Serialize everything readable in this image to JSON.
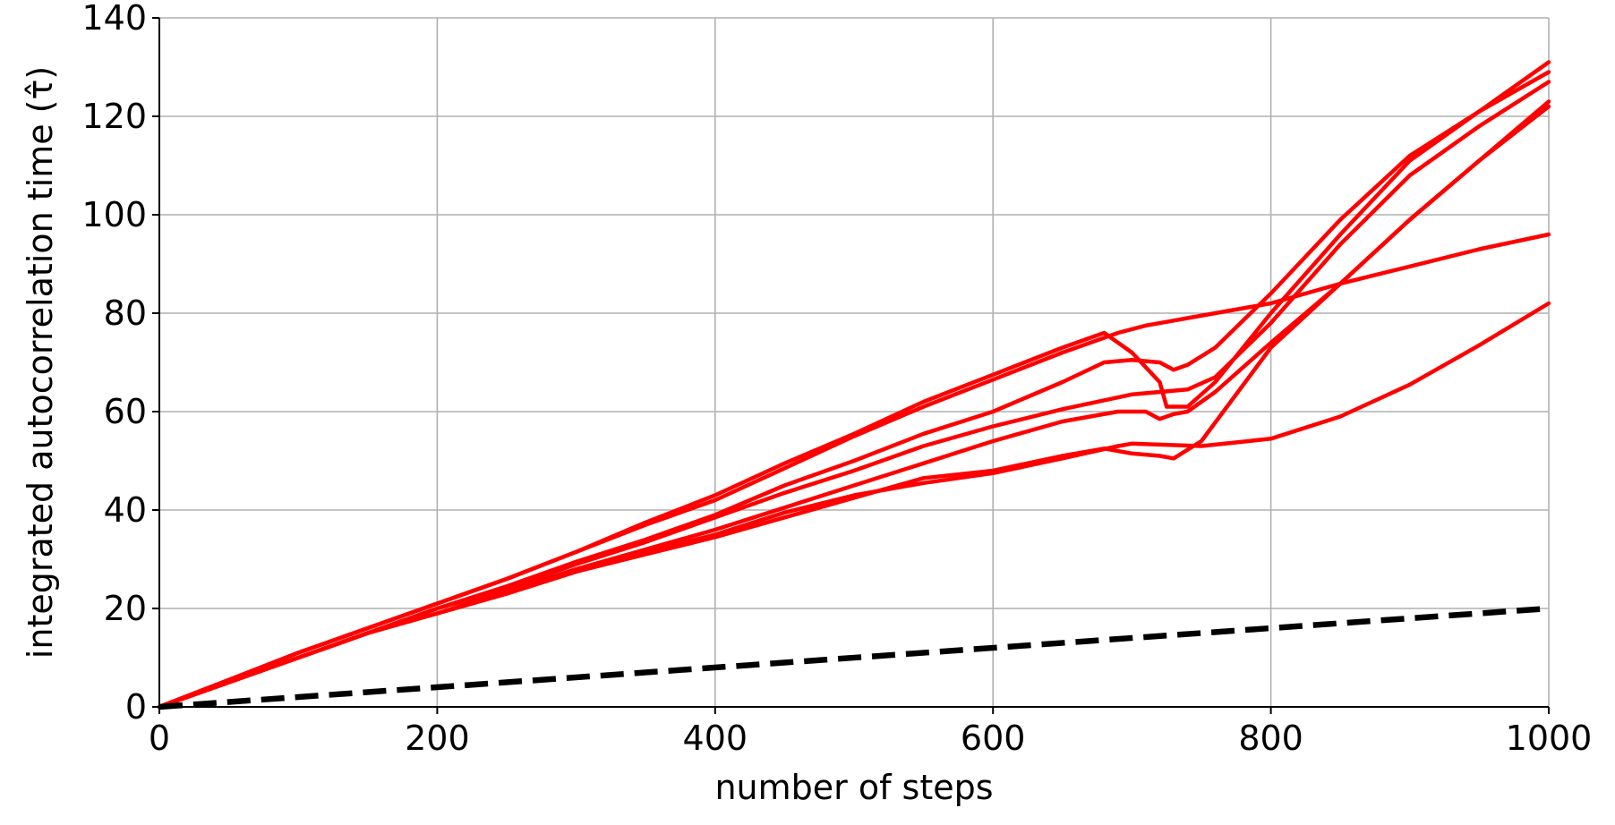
{
  "chart_data": {
    "type": "line",
    "title": "",
    "xlabel": "number of steps",
    "ylabel": "integrated autocorrelation time (τ̂)",
    "xlim": [
      0,
      1000
    ],
    "ylim": [
      0,
      140
    ],
    "xticks": [
      0,
      200,
      400,
      600,
      800,
      1000
    ],
    "yticks": [
      0,
      20,
      40,
      60,
      80,
      100,
      120,
      140
    ],
    "grid": true,
    "series_color": "#ff0000",
    "reference_color": "#000000",
    "series": [
      {
        "x": [
          0,
          50,
          100,
          150,
          200,
          250,
          300,
          350,
          400,
          450,
          500,
          550,
          600,
          650,
          680,
          700,
          720,
          725,
          740,
          760,
          800,
          850,
          900,
          950,
          1000
        ],
        "values": [
          0,
          5.5,
          11,
          16,
          21,
          26,
          31.5,
          37.5,
          43,
          49.5,
          55.5,
          62,
          67.5,
          73,
          76,
          72,
          66,
          61,
          61,
          66,
          80,
          96,
          111,
          121,
          131
        ]
      },
      {
        "x": [
          0,
          50,
          100,
          150,
          200,
          250,
          300,
          350,
          400,
          450,
          500,
          550,
          600,
          650,
          690,
          710,
          730,
          740,
          760,
          800,
          850,
          900,
          950,
          1000
        ],
        "values": [
          0,
          5.5,
          11,
          16,
          21,
          26,
          31.5,
          37,
          42,
          48.5,
          55,
          61,
          66.5,
          72,
          76,
          77.5,
          78.5,
          79,
          80,
          82,
          86,
          89.5,
          93,
          96
        ]
      },
      {
        "x": [
          0,
          50,
          100,
          150,
          200,
          250,
          300,
          350,
          400,
          450,
          500,
          550,
          600,
          650,
          680,
          700,
          720,
          730,
          740,
          760,
          800,
          850,
          900,
          950,
          1000
        ],
        "values": [
          0,
          5,
          10,
          15,
          20,
          24.5,
          29.5,
          34,
          39,
          45,
          50,
          55.5,
          60,
          66,
          70,
          70.5,
          70,
          68.5,
          69.5,
          73,
          84,
          99,
          112,
          121,
          129
        ]
      },
      {
        "x": [
          0,
          50,
          100,
          150,
          200,
          250,
          300,
          350,
          400,
          450,
          500,
          550,
          600,
          650,
          700,
          740,
          760,
          800,
          850,
          900,
          950,
          1000
        ],
        "values": [
          0,
          5,
          10,
          15,
          20,
          24,
          29,
          33.5,
          38.5,
          43.5,
          48,
          53,
          57,
          60.5,
          63.5,
          64.5,
          67,
          78,
          94,
          108,
          118,
          127
        ]
      },
      {
        "x": [
          0,
          50,
          100,
          150,
          200,
          250,
          300,
          350,
          400,
          450,
          500,
          550,
          600,
          650,
          690,
          710,
          720,
          730,
          740,
          760,
          800,
          850,
          900,
          950,
          1000
        ],
        "values": [
          0,
          5,
          10,
          15,
          19,
          23.5,
          28,
          32,
          36,
          40.5,
          45,
          49.5,
          54,
          58,
          60,
          60,
          58.5,
          59.5,
          60,
          64,
          74,
          86,
          99,
          111,
          123
        ]
      },
      {
        "x": [
          0,
          50,
          100,
          150,
          200,
          250,
          300,
          350,
          400,
          450,
          500,
          550,
          600,
          650,
          680,
          700,
          720,
          730,
          750,
          800,
          850,
          900,
          950,
          1000
        ],
        "values": [
          0,
          5,
          10,
          15,
          19,
          23,
          27.5,
          31,
          34.5,
          38.5,
          42.5,
          46.5,
          48,
          51,
          52.5,
          51.5,
          51,
          50.5,
          54,
          73,
          86,
          99,
          111,
          122
        ]
      },
      {
        "x": [
          0,
          50,
          100,
          150,
          200,
          250,
          300,
          350,
          400,
          450,
          500,
          550,
          600,
          650,
          690,
          700,
          750,
          800,
          850,
          900,
          950,
          1000
        ],
        "values": [
          0,
          5,
          10,
          15,
          19,
          23,
          27.5,
          31.5,
          35,
          39.5,
          43,
          45.5,
          47.5,
          50.5,
          53,
          53.5,
          53,
          54.5,
          59,
          65.5,
          73.5,
          82
        ]
      }
    ],
    "reference_line": {
      "style": "dashed",
      "x": [
        0,
        1000
      ],
      "values": [
        0,
        20
      ]
    }
  }
}
